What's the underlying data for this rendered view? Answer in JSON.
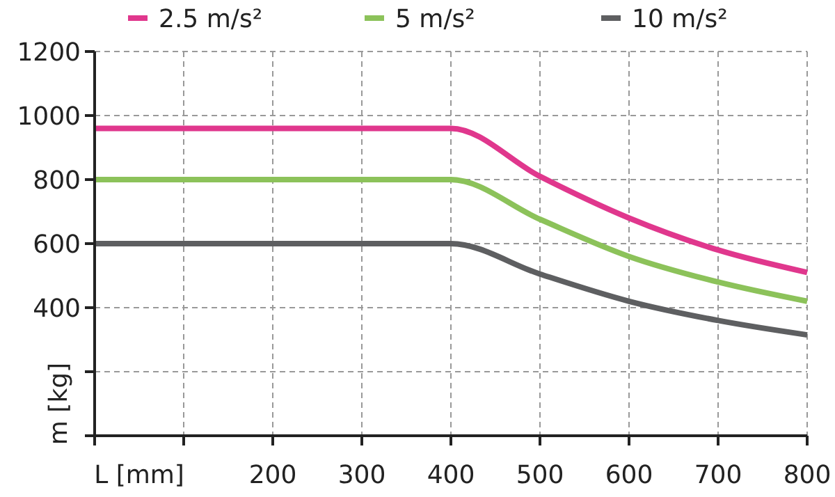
{
  "chart_data": {
    "type": "line",
    "xlabel": "L [mm]",
    "ylabel": "m [kg]",
    "x": [
      0,
      400,
      500,
      600,
      700,
      800
    ],
    "series": [
      {
        "name": "2.5 m/s²",
        "color": "#e0378d",
        "values": [
          960,
          960,
          810,
          680,
          580,
          510
        ]
      },
      {
        "name": "5 m/s²",
        "color": "#8cc25a",
        "values": [
          800,
          800,
          676,
          560,
          480,
          420
        ]
      },
      {
        "name": "10 m/s²",
        "color": "#5e5f61",
        "values": [
          600,
          600,
          505,
          420,
          360,
          315
        ]
      }
    ],
    "xlim": [
      0,
      800
    ],
    "xticks": [
      {
        "value": 0,
        "label": null
      },
      {
        "value": 100,
        "label": null
      },
      200,
      300,
      400,
      500,
      600,
      700,
      800
    ],
    "ylim": [
      0,
      1200
    ],
    "yticks": [
      {
        "value": 0,
        "label": null
      },
      {
        "value": 200,
        "label": null
      },
      400,
      600,
      800,
      1000,
      1200
    ],
    "grid": true,
    "legend": "top",
    "marker": "none",
    "line_style": "solid"
  }
}
